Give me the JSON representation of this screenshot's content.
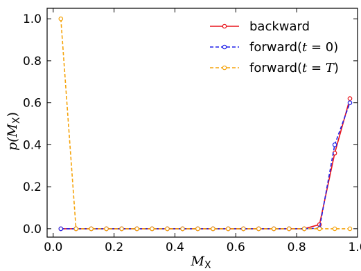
{
  "chart_data": {
    "type": "line",
    "xlabel": "M",
    "xlabel_sub": "X",
    "ylabel_pre": "p(",
    "ylabel_var": "M",
    "ylabel_sub": "X",
    "ylabel_post": ")",
    "xlim": [
      -0.02,
      1.0
    ],
    "ylim": [
      -0.04,
      1.05
    ],
    "xticks": [
      0.0,
      0.2,
      0.4,
      0.6,
      0.8,
      1.0
    ],
    "xtick_labels": [
      "0.0",
      "0.2",
      "0.4",
      "0.6",
      "0.8",
      "1.0"
    ],
    "yticks": [
      0.0,
      0.2,
      0.4,
      0.6,
      0.8,
      1.0
    ],
    "ytick_labels": [
      "0.0",
      "0.2",
      "0.4",
      "0.6",
      "0.8",
      "1.0"
    ],
    "legend_position": "top-right",
    "grid": false,
    "x": [
      0.025,
      0.075,
      0.125,
      0.175,
      0.225,
      0.275,
      0.325,
      0.375,
      0.425,
      0.475,
      0.525,
      0.575,
      0.625,
      0.675,
      0.725,
      0.775,
      0.825,
      0.875,
      0.925,
      0.975
    ],
    "series": [
      {
        "name": "backward",
        "legend_parts": [
          "backward"
        ],
        "color": "#e8141c",
        "dashed": false,
        "values": [
          0,
          0,
          0,
          0,
          0,
          0,
          0,
          0,
          0,
          0,
          0,
          0,
          0,
          0,
          0,
          0,
          0,
          0.02,
          0.36,
          0.62
        ]
      },
      {
        "name": "forward(t = 0)",
        "legend_parts": [
          "forward(",
          "t",
          " = 0)"
        ],
        "color": "#1f1fe8",
        "dashed": true,
        "values": [
          0,
          0,
          0,
          0,
          0,
          0,
          0,
          0,
          0,
          0,
          0,
          0,
          0,
          0,
          0,
          0,
          0,
          0.002,
          0.4,
          0.6
        ]
      },
      {
        "name": "forward(t = T)",
        "legend_parts": [
          "forward(",
          "t",
          " = ",
          "T",
          ")"
        ],
        "color": "#f5a30a",
        "dashed": true,
        "values": [
          1.0,
          0,
          0,
          0,
          0,
          0,
          0,
          0,
          0,
          0,
          0,
          0,
          0,
          0,
          0,
          0,
          0,
          0,
          0,
          0
        ]
      }
    ]
  }
}
